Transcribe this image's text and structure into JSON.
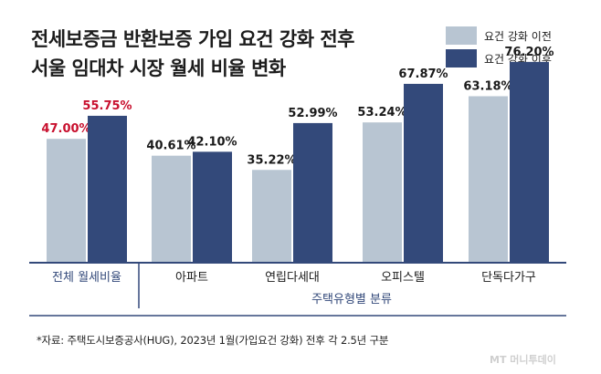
{
  "title_line1": "전세보증금 반환보증 가입 요건 강화 전후",
  "title_line2": "서울 임대차 시장 월세 비율 변화",
  "footnote": "*자료: 주택도시보증공사(HUG), 2023년 1월(가입요건 강화) 전후 각 2.5년 구분",
  "watermark": "MT 머니투데이",
  "colors": {
    "before": "#b8c5d2",
    "after": "#33497a",
    "highlight_label": "#c8102e",
    "label": "#1a1a1a",
    "axis": "#33497a"
  },
  "chart_data": {
    "type": "bar",
    "title": "전세보증금 반환보증 가입 요건 강화 전후 서울 임대차 시장 월세 비율 변화",
    "categories": [
      "전체 월세비율",
      "아파트",
      "연립다세대",
      "오피스텔",
      "단독다가구"
    ],
    "group_label": "주택유형별 분류",
    "series": [
      {
        "name": "요건 강화 이전",
        "values": [
          47.0,
          40.61,
          35.22,
          53.24,
          63.18
        ]
      },
      {
        "name": "요건 강화 이후",
        "values": [
          55.75,
          42.1,
          52.99,
          67.87,
          76.2
        ]
      }
    ],
    "value_labels": [
      [
        "47.00%",
        "40.61%",
        "35.22%",
        "53.24%",
        "63.18%"
      ],
      [
        "55.75%",
        "42.10%",
        "52.99%",
        "67.87%",
        "76.20%"
      ]
    ],
    "highlight_category_index": 0,
    "ylim": [
      0,
      90
    ],
    "grid": false,
    "legend": "top-right"
  }
}
